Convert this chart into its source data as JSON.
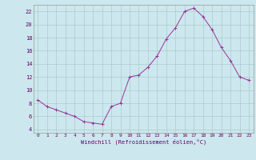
{
  "hours": [
    0,
    1,
    2,
    3,
    4,
    5,
    6,
    7,
    8,
    9,
    10,
    11,
    12,
    13,
    14,
    15,
    16,
    17,
    18,
    19,
    20,
    21,
    22,
    23
  ],
  "values": [
    8.5,
    7.5,
    7.0,
    6.5,
    6.0,
    5.2,
    5.0,
    4.8,
    7.5,
    8.0,
    12.0,
    12.3,
    13.5,
    15.2,
    17.8,
    19.5,
    22.0,
    22.5,
    21.2,
    19.2,
    16.5,
    14.5,
    12.0,
    11.5
  ],
  "xlim": [
    -0.5,
    23.5
  ],
  "ylim": [
    3.5,
    23.0
  ],
  "yticks": [
    4,
    6,
    8,
    10,
    12,
    14,
    16,
    18,
    20,
    22
  ],
  "xticks": [
    0,
    1,
    2,
    3,
    4,
    5,
    6,
    7,
    8,
    9,
    10,
    11,
    12,
    13,
    14,
    15,
    16,
    17,
    18,
    19,
    20,
    21,
    22,
    23
  ],
  "xlabel": "Windchill (Refroidissement éolien,°C)",
  "line_color": "#993399",
  "marker": "+",
  "bg_color": "#cce8ee",
  "grid_color": "#aacccc",
  "text_color": "#660066",
  "spine_color": "#999999"
}
